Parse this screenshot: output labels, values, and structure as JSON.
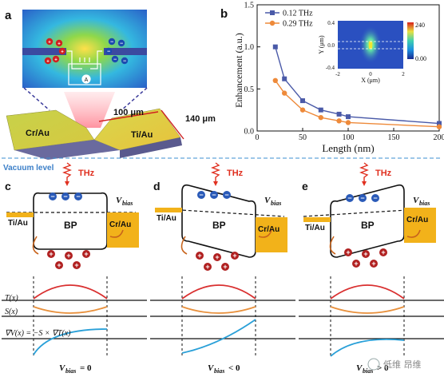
{
  "panels": {
    "a": {
      "label": "a",
      "len1": "100 μm",
      "len2": "140 μm",
      "left_metal": "Cr/Au",
      "right_metal": "Ti/Au"
    },
    "b": {
      "label": "b",
      "ylabel": "Enhancement (a.u.)",
      "xlabel": "Length (nm)",
      "inset": {
        "xlabel": "X (μm)",
        "ylabel": "Y (μm)",
        "cbar_max": "240",
        "cbar_min": "0.00"
      }
    },
    "c": {
      "label": "c",
      "bias": "V_bias = 0",
      "left_metal": "Ti/Au",
      "right_metal": "Cr/Au"
    },
    "d": {
      "label": "d",
      "bias": "V_bias < 0",
      "left_metal": "Ti/Au",
      "right_metal": "Cr/Au"
    },
    "e": {
      "label": "e",
      "bias": "V_bias > 0",
      "left_metal": "Ti/Au",
      "right_metal": "Cr/Au"
    }
  },
  "texts": {
    "vacuum": "Vacuum level",
    "thz": "THz",
    "bp": "BP",
    "vbias": "V",
    "vbias_sub": "bias",
    "tx": "T(x)",
    "sx": "S(x)",
    "vx": "∇V(x) = −S × ∇T(x)",
    "bias_c": "= 0",
    "bias_d": "< 0",
    "bias_e": "> 0",
    "watermark": "低维 昂维"
  },
  "colors": {
    "blue_series": "#4a5aa8",
    "orange_series": "#ee8a3a",
    "red_thz": "#e03020",
    "metal_gold": "#f2b21a",
    "vacuum_line": "#3b8fd0",
    "tcurve": "#d93030",
    "scurve": "#e8903c",
    "vcurve": "#2aa0d8"
  },
  "chart_data": {
    "type": "line",
    "xlabel": "Length (nm)",
    "ylabel": "Enhancement (a.u.)",
    "xlim": [
      0,
      200
    ],
    "ylim": [
      0,
      1.5
    ],
    "xticks": [
      0,
      50,
      100,
      150,
      200
    ],
    "yticks": [
      0.0,
      0.5,
      1.0,
      1.5
    ],
    "legend_position": "top-left",
    "series": [
      {
        "name": "0.12 THz",
        "color": "#4a5aa8",
        "marker": "square",
        "x": [
          20,
          30,
          50,
          70,
          90,
          100,
          200
        ],
        "y": [
          1.0,
          0.62,
          0.36,
          0.25,
          0.2,
          0.17,
          0.09
        ]
      },
      {
        "name": "0.29 THz",
        "color": "#ee8a3a",
        "marker": "circle",
        "x": [
          20,
          30,
          50,
          70,
          90,
          100,
          200
        ],
        "y": [
          0.6,
          0.45,
          0.25,
          0.16,
          0.12,
          0.1,
          0.05
        ]
      }
    ]
  }
}
